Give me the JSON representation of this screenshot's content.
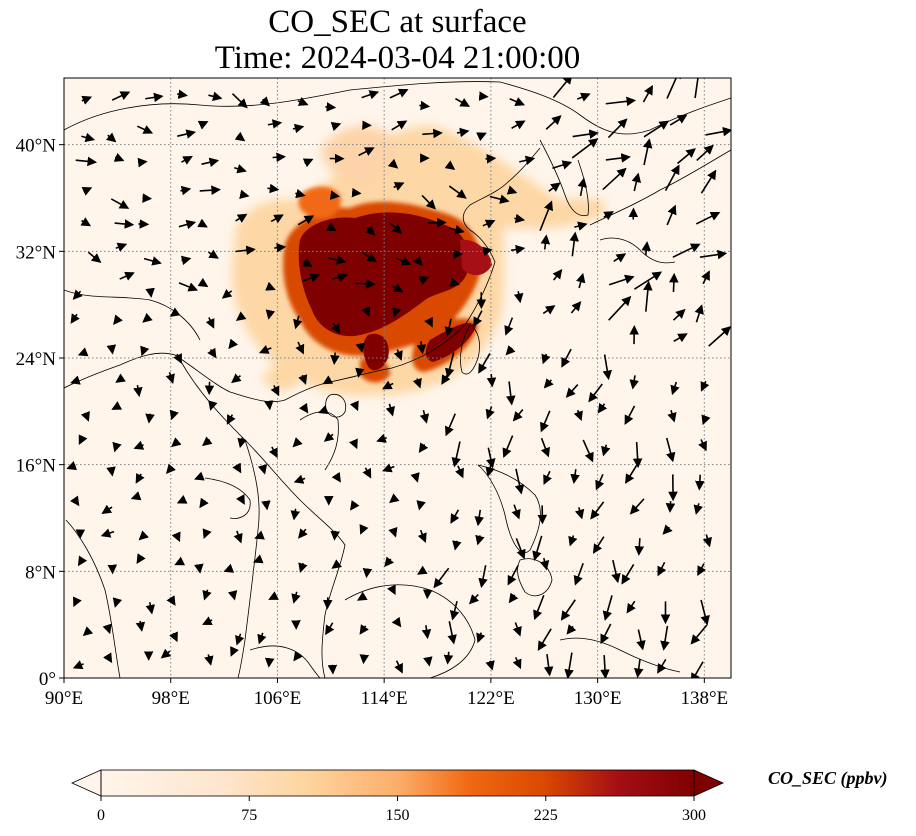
{
  "title_line1": "CO_SEC at surface",
  "title_line2": "Time: 2024-03-04 21:00:00",
  "map": {
    "lon_range": [
      90,
      140
    ],
    "lat_range": [
      0,
      45
    ],
    "lat_ticks": [
      {
        "value": 0,
        "label": "0°"
      },
      {
        "value": 8,
        "label": "8°N"
      },
      {
        "value": 16,
        "label": "16°N"
      },
      {
        "value": 24,
        "label": "24°N"
      },
      {
        "value": 32,
        "label": "32°N"
      },
      {
        "value": 40,
        "label": "40°N"
      }
    ],
    "lon_ticks": [
      {
        "value": 90,
        "label": "90°E"
      },
      {
        "value": 98,
        "label": "98°E"
      },
      {
        "value": 106,
        "label": "106°E"
      },
      {
        "value": 114,
        "label": "114°E"
      },
      {
        "value": 122,
        "label": "122°E"
      },
      {
        "value": 130,
        "label": "130°E"
      },
      {
        "value": 138,
        "label": "138°E"
      }
    ],
    "gridlines": true
  },
  "colorbar": {
    "label": "CO_SEC (ppbv)",
    "range": [
      0,
      300
    ],
    "extend": "both",
    "ticks": [
      {
        "value": 0,
        "label": "0"
      },
      {
        "value": 75,
        "label": "75"
      },
      {
        "value": 150,
        "label": "150"
      },
      {
        "value": 225,
        "label": "225"
      },
      {
        "value": 300,
        "label": "300"
      }
    ],
    "colors": [
      "#fff5eb",
      "#fdd49e",
      "#fc8d59",
      "#d7301f",
      "#7f0000"
    ]
  }
}
